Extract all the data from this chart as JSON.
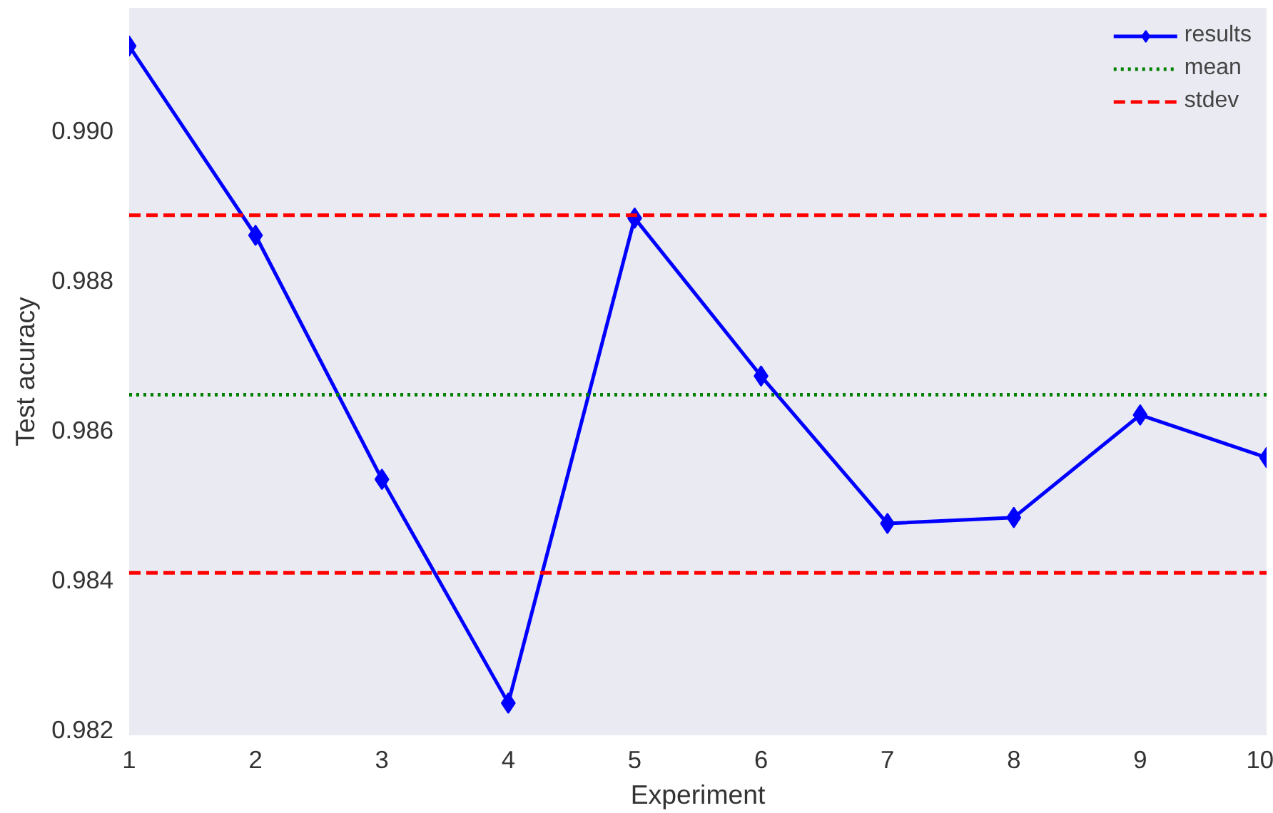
{
  "chart_data": {
    "type": "line",
    "xlabel": "Experiment",
    "ylabel": "Test acuracy",
    "x": [
      1,
      2,
      3,
      4,
      5,
      6,
      7,
      8,
      9,
      10
    ],
    "series": [
      {
        "name": "results",
        "color": "#0000ff",
        "values": [
          0.99113,
          0.9886,
          0.98534,
          0.98235,
          0.98883,
          0.98672,
          0.98475,
          0.98483,
          0.9862,
          0.98563
        ]
      }
    ],
    "ref_lines": [
      {
        "axis": "y",
        "value": 0.98647,
        "label": "mean",
        "color": "#008000",
        "line_style": "dotted"
      },
      {
        "axis": "y",
        "value": 0.98887,
        "label": "stdev",
        "color": "#ff0000",
        "line_style": "dashed"
      },
      {
        "axis": "y",
        "value": 0.98409,
        "label": null,
        "color": "#ff0000",
        "line_style": "dashed"
      }
    ],
    "xlim": [
      1,
      10
    ],
    "xticks": [
      1,
      2,
      3,
      4,
      5,
      6,
      7,
      8,
      9,
      10
    ],
    "ylim": [
      0.98192,
      0.99164
    ],
    "yticks": [
      {
        "value": 0.982,
        "label": "0.982"
      },
      {
        "value": 0.984,
        "label": "0.984"
      },
      {
        "value": 0.986,
        "label": "0.986"
      },
      {
        "value": 0.988,
        "label": "0.988"
      },
      {
        "value": 0.99,
        "label": "0.990"
      }
    ],
    "marker": "diamond",
    "line_style": "solid",
    "grid": false,
    "legend": "top right"
  }
}
